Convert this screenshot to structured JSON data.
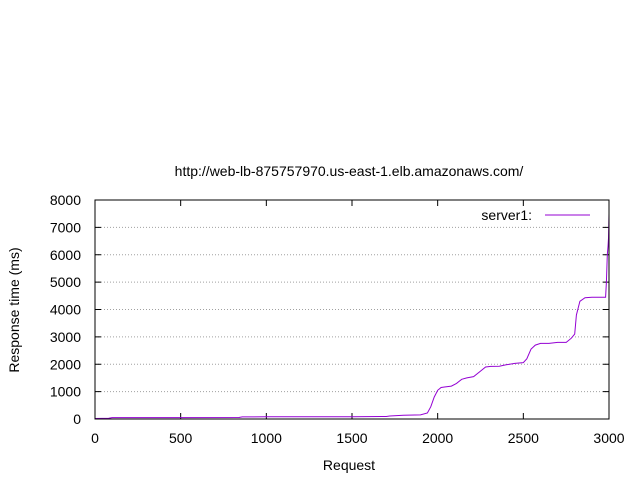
{
  "chart_data": {
    "type": "line",
    "title": "http://web-lb-875757970.us-east-1.elb.amazonaws.com/",
    "xlabel": "Request",
    "ylabel": "Response time (ms)",
    "xlim": [
      0,
      3000
    ],
    "ylim": [
      0,
      8000
    ],
    "xticks": [
      0,
      500,
      1000,
      1500,
      2000,
      2500,
      3000
    ],
    "yticks": [
      0,
      1000,
      2000,
      3000,
      4000,
      5000,
      6000,
      7000,
      8000
    ],
    "grid": "horizontal-dotted",
    "legend_position": "top-right",
    "series": [
      {
        "name": "server1:",
        "color": "#9400d3",
        "x": [
          0,
          80,
          100,
          500,
          840,
          860,
          1000,
          1500,
          1700,
          1720,
          1800,
          1900,
          1940,
          1960,
          1980,
          2000,
          2020,
          2040,
          2080,
          2110,
          2140,
          2170,
          2210,
          2250,
          2280,
          2310,
          2360,
          2400,
          2450,
          2500,
          2520,
          2545,
          2570,
          2600,
          2650,
          2700,
          2750,
          2780,
          2800,
          2810,
          2830,
          2860,
          2900,
          2950,
          2980,
          2985,
          2990,
          2994,
          2997,
          3000
        ],
        "y": [
          20,
          30,
          50,
          50,
          55,
          75,
          80,
          80,
          90,
          110,
          140,
          150,
          220,
          450,
          800,
          1050,
          1150,
          1170,
          1200,
          1300,
          1450,
          1500,
          1550,
          1750,
          1900,
          1920,
          1930,
          1980,
          2030,
          2060,
          2200,
          2550,
          2700,
          2760,
          2760,
          2800,
          2800,
          2950,
          3100,
          3800,
          4300,
          4430,
          4450,
          4450,
          4450,
          5000,
          6000,
          6300,
          6600,
          7500
        ]
      }
    ]
  }
}
